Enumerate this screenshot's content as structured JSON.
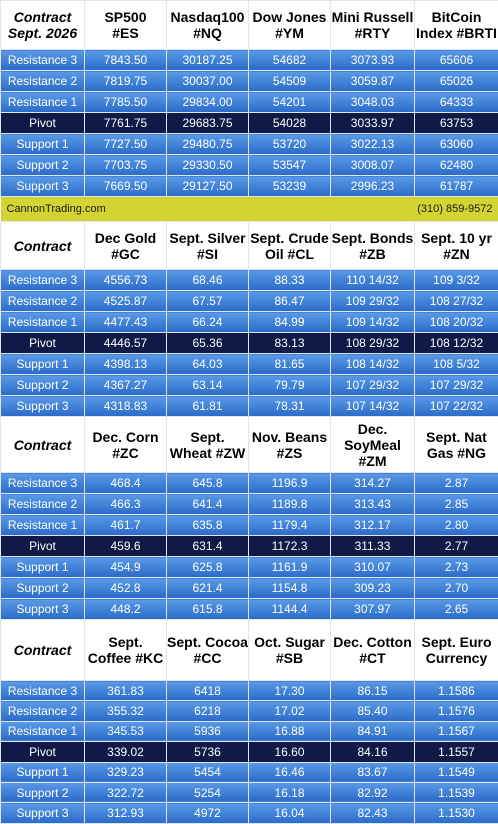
{
  "sections": [
    {
      "header": [
        "Contract\nSept. 2026",
        "SP500\n#ES",
        "Nasdaq100\n#NQ",
        "Dow Jones\n#YM",
        "Mini Russell\n#RTY",
        "BitCoin\nIndex #BRTI"
      ],
      "rows": [
        [
          "Resistance 3",
          "7843.50",
          "30187.25",
          "54682",
          "3073.93",
          "65606"
        ],
        [
          "Resistance 2",
          "7819.75",
          "30037.00",
          "54509",
          "3059.87",
          "65026"
        ],
        [
          "Resistance 1",
          "7785.50",
          "29834.00",
          "54201",
          "3048.03",
          "64333"
        ],
        [
          "Pivot",
          "7761.75",
          "29683.75",
          "54028",
          "3033.97",
          "63753"
        ],
        [
          "Support 1",
          "7727.50",
          "29480.75",
          "53720",
          "3022.13",
          "63060"
        ],
        [
          "Support 2",
          "7703.75",
          "29330.50",
          "53547",
          "3008.07",
          "62480"
        ],
        [
          "Support 3",
          "7669.50",
          "29127.50",
          "53239",
          "2996.23",
          "61787"
        ]
      ]
    },
    {
      "header": [
        "Contract",
        "Dec Gold\n#GC",
        "Sept. Silver\n#SI",
        "Sept. Crude\nOil #CL",
        "Sept. Bonds\n#ZB",
        "Sept. 10 yr\n#ZN"
      ],
      "rows": [
        [
          "Resistance 3",
          "4556.73",
          "68.46",
          "88.33",
          "110 14/32",
          "109 3/32"
        ],
        [
          "Resistance 2",
          "4525.87",
          "67.57",
          "86.47",
          "109 29/32",
          "108 27/32"
        ],
        [
          "Resistance 1",
          "4477.43",
          "66.24",
          "84.99",
          "109 14/32",
          "108 20/32"
        ],
        [
          "Pivot",
          "4446.57",
          "65.36",
          "83.13",
          "108 29/32",
          "108 12/32"
        ],
        [
          "Support 1",
          "4398.13",
          "64.03",
          "81.65",
          "108 14/32",
          "108 5/32"
        ],
        [
          "Support 2",
          "4367.27",
          "63.14",
          "79.79",
          "107 29/32",
          "107 29/32"
        ],
        [
          "Support 3",
          "4318.83",
          "61.81",
          "78.31",
          "107 14/32",
          "107 22/32"
        ]
      ]
    },
    {
      "header": [
        "Contract",
        "Dec. Corn\n#ZC",
        "Sept.\nWheat #ZW",
        "Nov. Beans\n#ZS",
        "Dec.\nSoyMeal\n#ZM",
        "Sept. Nat\nGas #NG"
      ],
      "rows": [
        [
          "Resistance 3",
          "468.4",
          "645.8",
          "1196.9",
          "314.27",
          "2.87"
        ],
        [
          "Resistance 2",
          "466.3",
          "641.4",
          "1189.8",
          "313.43",
          "2.85"
        ],
        [
          "Resistance 1",
          "461.7",
          "635.8",
          "1179.4",
          "312.17",
          "2.80"
        ],
        [
          "Pivot",
          "459.6",
          "631.4",
          "1172.3",
          "311.33",
          "2.77"
        ],
        [
          "Support 1",
          "454.9",
          "625.8",
          "1161.9",
          "310.07",
          "2.73"
        ],
        [
          "Support 2",
          "452.8",
          "621.4",
          "1154.8",
          "309.23",
          "2.70"
        ],
        [
          "Support 3",
          "448.2",
          "615.8",
          "1144.4",
          "307.97",
          "2.65"
        ]
      ]
    },
    {
      "header": [
        "Contract",
        "Sept.\nCoffee #KC",
        "Sept. Cocoa\n#CC",
        "Oct. Sugar\n#SB",
        "Dec. Cotton\n#CT",
        "Sept. Euro\nCurrency"
      ],
      "rows": [
        [
          "Resistance 3",
          "361.83",
          "6418",
          "17.30",
          "86.15",
          "1.1586"
        ],
        [
          "Resistance 2",
          "355.32",
          "6218",
          "17.02",
          "85.40",
          "1.1576"
        ],
        [
          "Resistance 1",
          "345.53",
          "5936",
          "16.88",
          "84.91",
          "1.1567"
        ],
        [
          "Pivot",
          "339.02",
          "5736",
          "16.60",
          "84.16",
          "1.1557"
        ],
        [
          "Support 1",
          "329.23",
          "5454",
          "16.46",
          "83.67",
          "1.1549"
        ],
        [
          "Support 2",
          "322.72",
          "5254",
          "16.18",
          "82.92",
          "1.1539"
        ],
        [
          "Support 3",
          "312.93",
          "4972",
          "16.04",
          "82.43",
          "1.1530"
        ]
      ]
    }
  ],
  "banner": {
    "left": "CannonTrading.com",
    "right": "(310) 859-9572"
  }
}
